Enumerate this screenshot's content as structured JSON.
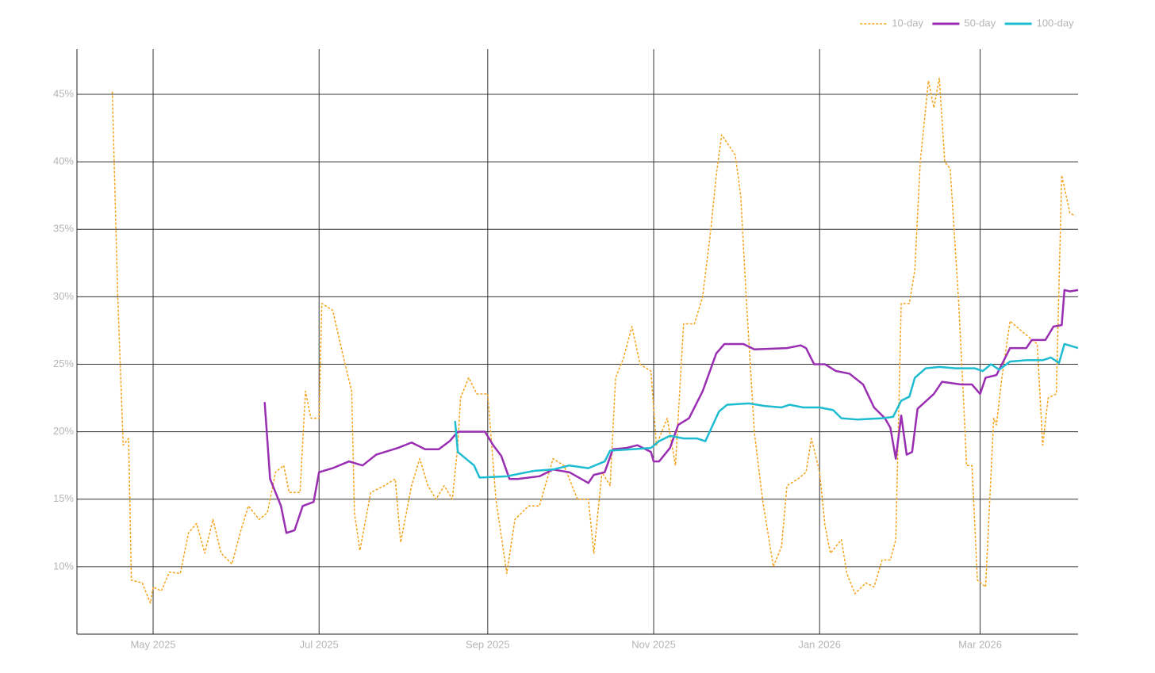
{
  "chart_data": {
    "type": "line",
    "xlim": [
      "2025-04-03",
      "2026-04-06"
    ],
    "ylim": [
      5,
      48.35
    ],
    "grid": true,
    "legend": "top-right",
    "xticks": [
      {
        "value": "2025-05-01",
        "label": "May 2025"
      },
      {
        "value": "2025-07-01",
        "label": "Jul 2025"
      },
      {
        "value": "2025-09-01",
        "label": "Sep 2025"
      },
      {
        "value": "2025-11-01",
        "label": "Nov 2025"
      },
      {
        "value": "2026-01-01",
        "label": "Jan 2026"
      },
      {
        "value": "2026-03-01",
        "label": "Mar 2026"
      }
    ],
    "yticks": [
      {
        "value": 10,
        "label": "10%"
      },
      {
        "value": 15,
        "label": "15%"
      },
      {
        "value": 20,
        "label": "20%"
      },
      {
        "value": 25,
        "label": "25%"
      },
      {
        "value": 30,
        "label": "30%"
      },
      {
        "value": 35,
        "label": "35%"
      },
      {
        "value": 40,
        "label": "40%"
      },
      {
        "value": 45,
        "label": "45%"
      }
    ],
    "series": [
      {
        "name": "10-day",
        "color": "#f5a31a",
        "dash": true,
        "x": [
          "2025-04-16",
          "2025-04-18",
          "2025-04-20",
          "2025-04-22",
          "2025-04-23",
          "2025-04-27",
          "2025-04-30",
          "2025-05-01",
          "2025-05-04",
          "2025-05-07",
          "2025-05-11",
          "2025-05-14",
          "2025-05-17",
          "2025-05-20",
          "2025-05-23",
          "2025-05-26",
          "2025-05-30",
          "2025-06-02",
          "2025-06-05",
          "2025-06-09",
          "2025-06-12",
          "2025-06-15",
          "2025-06-18",
          "2025-06-20",
          "2025-06-24",
          "2025-06-26",
          "2025-06-28",
          "2025-07-01",
          "2025-07-02",
          "2025-07-06",
          "2025-07-10",
          "2025-07-13",
          "2025-07-14",
          "2025-07-16",
          "2025-07-20",
          "2025-07-25",
          "2025-07-29",
          "2025-07-31",
          "2025-08-04",
          "2025-08-07",
          "2025-08-10",
          "2025-08-13",
          "2025-08-16",
          "2025-08-19",
          "2025-08-21",
          "2025-08-22",
          "2025-08-25",
          "2025-08-28",
          "2025-09-01",
          "2025-09-04",
          "2025-09-08",
          "2025-09-11",
          "2025-09-16",
          "2025-09-20",
          "2025-09-25",
          "2025-09-29",
          "2025-10-04",
          "2025-10-08",
          "2025-10-10",
          "2025-10-13",
          "2025-10-16",
          "2025-10-18",
          "2025-10-21",
          "2025-10-24",
          "2025-10-27",
          "2025-10-31",
          "2025-11-02",
          "2025-11-06",
          "2025-11-09",
          "2025-11-12",
          "2025-11-16",
          "2025-11-19",
          "2025-11-22",
          "2025-11-24",
          "2025-11-26",
          "2025-12-01",
          "2025-12-03",
          "2025-12-05",
          "2025-12-08",
          "2025-12-11",
          "2025-12-15",
          "2025-12-18",
          "2025-12-20",
          "2025-12-24",
          "2025-12-27",
          "2025-12-29",
          "2026-01-01",
          "2026-01-03",
          "2026-01-05",
          "2026-01-09",
          "2026-01-11",
          "2026-01-14",
          "2026-01-18",
          "2026-01-21",
          "2026-01-24",
          "2026-01-27",
          "2026-01-29",
          "2026-01-31",
          "2026-02-03",
          "2026-02-05",
          "2026-02-07",
          "2026-02-10",
          "2026-02-12",
          "2026-02-14",
          "2026-02-16",
          "2026-02-18",
          "2026-02-21",
          "2026-02-23",
          "2026-02-24",
          "2026-02-26",
          "2026-02-28",
          "2026-03-03",
          "2026-03-06",
          "2026-03-07",
          "2026-03-09",
          "2026-03-12",
          "2026-03-16",
          "2026-03-19",
          "2026-03-22",
          "2026-03-24",
          "2026-03-26",
          "2026-03-29",
          "2026-03-31",
          "2026-04-03",
          "2026-04-05"
        ],
        "values": [
          45.2,
          30,
          19,
          19.5,
          9,
          8.8,
          7.3,
          8.5,
          8.2,
          9.6,
          9.5,
          12.5,
          13.2,
          11,
          13.5,
          11,
          10.2,
          12.5,
          14.5,
          13.5,
          14,
          17,
          17.5,
          15.5,
          15.5,
          23,
          21,
          21,
          29.5,
          29,
          25.5,
          23,
          14,
          11.2,
          15.5,
          16,
          16.5,
          11.8,
          16,
          18,
          16,
          15,
          16,
          15,
          19,
          22.5,
          24,
          22.8,
          22.8,
          15,
          9.5,
          13.5,
          14.5,
          14.5,
          18,
          17.5,
          15,
          15,
          11,
          17,
          16,
          24,
          25.5,
          27.8,
          25,
          24.5,
          19,
          21,
          17.5,
          28,
          28,
          30,
          35,
          39,
          42,
          40.5,
          37.5,
          30,
          20,
          15,
          10,
          11.5,
          16,
          16.5,
          17,
          19.5,
          17,
          13,
          11,
          12,
          9.5,
          8,
          8.8,
          8.5,
          10.5,
          10.5,
          12,
          29.5,
          29.5,
          32,
          40,
          46,
          44,
          46.2,
          40,
          39.5,
          30,
          22,
          17.5,
          17.5,
          9,
          8.5,
          21,
          20.5,
          24,
          28.2,
          27.5,
          27,
          26.5,
          19,
          22.5,
          22.8,
          39,
          36.2,
          36
        ]
      },
      {
        "name": "50-day",
        "color": "#9a2eb3",
        "x": [
          "2025-06-11",
          "2025-06-13",
          "2025-06-17",
          "2025-06-19",
          "2025-06-22",
          "2025-06-25",
          "2025-06-29",
          "2025-07-01",
          "2025-07-06",
          "2025-07-12",
          "2025-07-17",
          "2025-07-22",
          "2025-07-30",
          "2025-08-04",
          "2025-08-09",
          "2025-08-14",
          "2025-08-18",
          "2025-08-21",
          "2025-08-31",
          "2025-09-03",
          "2025-09-06",
          "2025-09-09",
          "2025-09-12",
          "2025-09-20",
          "2025-09-25",
          "2025-10-01",
          "2025-10-08",
          "2025-10-10",
          "2025-10-14",
          "2025-10-17",
          "2025-10-22",
          "2025-10-26",
          "2025-10-31",
          "2025-11-01",
          "2025-11-03",
          "2025-11-07",
          "2025-11-10",
          "2025-11-14",
          "2025-11-19",
          "2025-11-24",
          "2025-11-27",
          "2025-12-04",
          "2025-12-08",
          "2025-12-20",
          "2025-12-25",
          "2025-12-27",
          "2025-12-30",
          "2026-01-03",
          "2026-01-07",
          "2026-01-12",
          "2026-01-17",
          "2026-01-21",
          "2026-01-25",
          "2026-01-27",
          "2026-01-29",
          "2026-01-31",
          "2026-02-02",
          "2026-02-04",
          "2026-02-06",
          "2026-02-12",
          "2026-02-15",
          "2026-02-22",
          "2026-02-26",
          "2026-03-01",
          "2026-03-03",
          "2026-03-07",
          "2026-03-09",
          "2026-03-12",
          "2026-03-18",
          "2026-03-20",
          "2026-03-25",
          "2026-03-28",
          "2026-03-31",
          "2026-04-01",
          "2026-04-03",
          "2026-04-06"
        ],
        "values": [
          22.2,
          16.5,
          14.5,
          12.5,
          12.7,
          14.5,
          14.8,
          17,
          17.3,
          17.8,
          17.5,
          18.3,
          18.8,
          19.2,
          18.7,
          18.7,
          19.3,
          20,
          20,
          19,
          18.2,
          16.5,
          16.5,
          16.7,
          17.2,
          17,
          16.2,
          16.8,
          17,
          18.7,
          18.8,
          19,
          18.5,
          17.8,
          17.8,
          18.8,
          20.5,
          21,
          23,
          25.8,
          26.5,
          26.5,
          26.1,
          26.2,
          26.4,
          26.2,
          25,
          25,
          24.5,
          24.3,
          23.5,
          21.8,
          21,
          20.3,
          18,
          21.2,
          18.3,
          18.5,
          21.7,
          22.8,
          23.7,
          23.5,
          23.5,
          22.8,
          24,
          24.2,
          25,
          26.2,
          26.2,
          26.8,
          26.8,
          27.8,
          27.9,
          30.5,
          30.4,
          30.5
        ]
      },
      {
        "name": "100-day",
        "color": "#1ebcd1",
        "x": [
          "2025-08-20",
          "2025-08-21",
          "2025-08-27",
          "2025-08-29",
          "2025-09-08",
          "2025-09-18",
          "2025-09-25",
          "2025-10-01",
          "2025-10-08",
          "2025-10-14",
          "2025-10-16",
          "2025-10-24",
          "2025-10-31",
          "2025-11-03",
          "2025-11-07",
          "2025-11-12",
          "2025-11-17",
          "2025-11-20",
          "2025-11-25",
          "2025-11-28",
          "2025-12-06",
          "2025-12-12",
          "2025-12-18",
          "2025-12-21",
          "2025-12-26",
          "2026-01-01",
          "2026-01-06",
          "2026-01-09",
          "2026-01-15",
          "2026-01-24",
          "2026-01-28",
          "2026-01-31",
          "2026-02-03",
          "2026-02-05",
          "2026-02-09",
          "2026-02-14",
          "2026-02-20",
          "2026-02-27",
          "2026-03-02",
          "2026-03-05",
          "2026-03-08",
          "2026-03-12",
          "2026-03-18",
          "2026-03-24",
          "2026-03-27",
          "2026-03-30",
          "2026-04-01",
          "2026-04-06"
        ],
        "values": [
          20.8,
          18.5,
          17.5,
          16.6,
          16.7,
          17.1,
          17.2,
          17.5,
          17.3,
          17.8,
          18.6,
          18.7,
          18.8,
          19.3,
          19.7,
          19.5,
          19.5,
          19.3,
          21.5,
          22,
          22.1,
          21.9,
          21.8,
          22,
          21.8,
          21.8,
          21.6,
          21,
          20.9,
          21,
          21.1,
          22.3,
          22.6,
          24,
          24.7,
          24.8,
          24.7,
          24.7,
          24.5,
          25,
          24.6,
          25.2,
          25.3,
          25.3,
          25.5,
          25.1,
          26.5,
          26.2
        ]
      }
    ]
  }
}
